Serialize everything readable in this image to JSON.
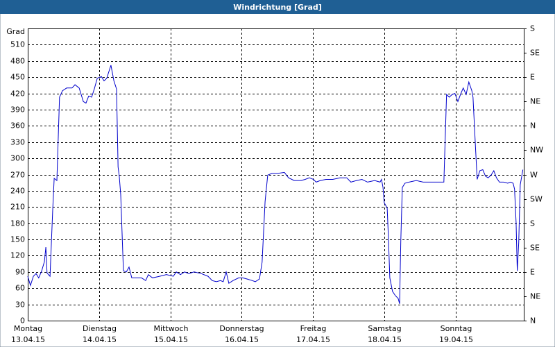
{
  "chart_data": {
    "type": "line",
    "title": "Windrichtung [Grad]",
    "y_label": "Grad",
    "xlim": [
      0,
      167
    ],
    "xticks": [
      {
        "value": 0,
        "label": [
          "Montag",
          "13.04.15"
        ]
      },
      {
        "value": 24,
        "label": [
          "Dienstag",
          "14.04.15"
        ]
      },
      {
        "value": 48,
        "label": [
          "Mittwoch",
          "15.04.15"
        ]
      },
      {
        "value": 72,
        "label": [
          "Donnerstag",
          "16.04.15"
        ]
      },
      {
        "value": 96,
        "label": [
          "Freitag",
          "17.04.15"
        ]
      },
      {
        "value": 120,
        "label": [
          "Samstag",
          "18.04.15"
        ]
      },
      {
        "value": 144,
        "label": [
          "Sonntag",
          "19.04.15"
        ]
      }
    ],
    "ylim": [
      0,
      540
    ],
    "yticks": [
      0,
      30,
      60,
      90,
      120,
      150,
      180,
      210,
      240,
      270,
      300,
      330,
      360,
      390,
      420,
      450,
      480,
      510
    ],
    "y2lim": [
      0,
      540
    ],
    "y2ticks": [
      {
        "value": 0,
        "label": "N"
      },
      {
        "value": 45,
        "label": "NE"
      },
      {
        "value": 90,
        "label": "E"
      },
      {
        "value": 135,
        "label": "SE"
      },
      {
        "value": 180,
        "label": "S"
      },
      {
        "value": 225,
        "label": "SW"
      },
      {
        "value": 270,
        "label": "W"
      },
      {
        "value": 315,
        "label": "NW"
      },
      {
        "value": 360,
        "label": "N"
      },
      {
        "value": 405,
        "label": "NE"
      },
      {
        "value": 450,
        "label": "E"
      },
      {
        "value": 495,
        "label": "SE"
      },
      {
        "value": 540,
        "label": "S"
      }
    ],
    "grid": true,
    "series": [
      {
        "color": "#0000cc",
        "x": [
          0,
          0.9,
          1.9,
          2.8,
          3.7,
          4.7,
          5.6,
          6.1,
          6.5,
          7.5,
          8.4,
          8.9,
          9.8,
          10.7,
          11.7,
          13.1,
          14.9,
          15.9,
          17.3,
          18.7,
          19.6,
          20.5,
          21.5,
          22.4,
          23.4,
          24.8,
          25.7,
          26.6,
          28.0,
          29.0,
          29.9,
          30.4,
          30.8,
          31.3,
          32.2,
          33.2,
          34.1,
          35.0,
          36.4,
          38.3,
          39.7,
          40.6,
          42.0,
          44.4,
          46.7,
          49.0,
          50.0,
          51.4,
          52.8,
          54.2,
          56.0,
          58.4,
          60.7,
          62.1,
          63.5,
          64.9,
          65.8,
          66.8,
          67.7,
          69.1,
          71.0,
          72.4,
          73.8,
          75.6,
          76.6,
          78.0,
          78.9,
          79.9,
          80.8,
          82.2,
          84.1,
          86.4,
          87.8,
          89.7,
          92.0,
          93.4,
          94.8,
          96.2,
          97.1,
          98.5,
          100.4,
          102.7,
          105.1,
          107.4,
          108.8,
          110.7,
          112.5,
          114.4,
          116.8,
          118.6,
          119.1,
          119.6,
          120.0,
          121.0,
          121.4,
          121.9,
          122.8,
          123.8,
          124.7,
          125.2,
          125.6,
          126.1,
          127.0,
          128.4,
          130.8,
          133.1,
          135.4,
          137.8,
          139.6,
          140.1,
          141.0,
          141.9,
          142.9,
          143.8,
          144.8,
          145.7,
          146.6,
          147.6,
          148.5,
          149.5,
          149.9,
          150.8,
          151.3,
          152.2,
          153.2,
          154.1,
          155.0,
          156.0,
          156.9,
          157.8,
          158.8,
          160.2,
          161.6,
          162.5,
          163.4,
          163.9,
          164.4,
          164.8,
          165.3,
          165.8,
          166.7
        ],
        "values": [
          82,
          65,
          82,
          87,
          79,
          92,
          109,
          136,
          88,
          82,
          205,
          263,
          259,
          413,
          425,
          430,
          430,
          436,
          430,
          405,
          402,
          415,
          413,
          428,
          448,
          451,
          443,
          448,
          472,
          443,
          428,
          284,
          267,
          233,
          92,
          90,
          99,
          79,
          79,
          79,
          74,
          85,
          79,
          82,
          85,
          82,
          90,
          85,
          90,
          87,
          90,
          87,
          82,
          74,
          72,
          74,
          72,
          90,
          69,
          74,
          79,
          79,
          77,
          74,
          72,
          77,
          108,
          220,
          269,
          272,
          272,
          274,
          264,
          259,
          259,
          261,
          264,
          261,
          256,
          259,
          261,
          261,
          264,
          264,
          256,
          259,
          261,
          256,
          259,
          256,
          261,
          246,
          218,
          208,
          156,
          79,
          54,
          46,
          41,
          31,
          146,
          246,
          254,
          256,
          259,
          256,
          256,
          256,
          256,
          256,
          418,
          413,
          418,
          420,
          405,
          418,
          430,
          418,
          441,
          425,
          413,
          315,
          261,
          277,
          279,
          267,
          264,
          269,
          277,
          264,
          256,
          256,
          254,
          256,
          254,
          243,
          182,
          92,
          144,
          251,
          279
        ]
      }
    ]
  }
}
